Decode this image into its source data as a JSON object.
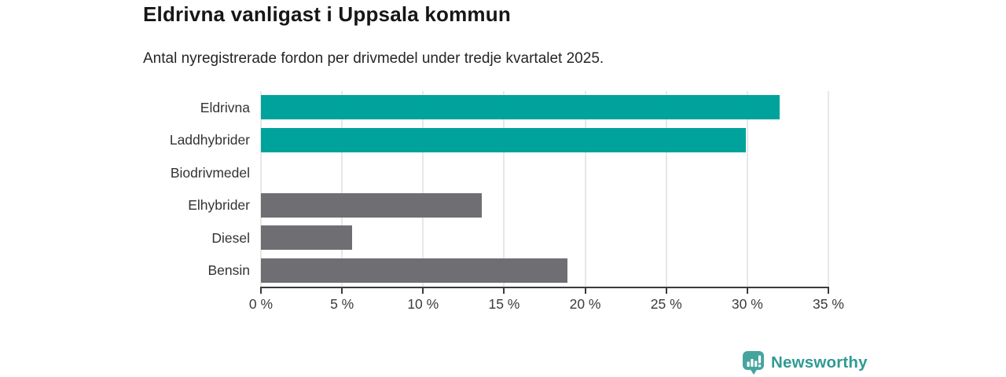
{
  "header": {
    "title": "Eldrivna vanligast i Uppsala kommun",
    "subtitle": "Antal nyregistrerade fordon per drivmedel under tredje kvartalet 2025."
  },
  "chart_data": {
    "type": "bar",
    "orientation": "horizontal",
    "title": "Eldrivna vanligast i Uppsala kommun",
    "subtitle": "Antal nyregistrerade fordon per drivmedel under tredje kvartalet 2025.",
    "categories": [
      "Eldrivna",
      "Laddhybrider",
      "Biodrivmedel",
      "Elhybrider",
      "Diesel",
      "Bensin"
    ],
    "values": [
      32.0,
      29.9,
      0,
      13.6,
      5.6,
      18.9
    ],
    "unit": "%",
    "xlim": [
      0,
      35
    ],
    "x_ticks": [
      0,
      5,
      10,
      15,
      20,
      25,
      30,
      35
    ],
    "x_tick_labels": [
      "0 %",
      "5 %",
      "10 %",
      "15 %",
      "20 %",
      "25 %",
      "30 %",
      "35 %"
    ],
    "bar_colors": [
      "#00a39b",
      "#00a39b",
      "#6e6e73",
      "#6e6e73",
      "#6e6e73",
      "#6e6e73"
    ],
    "highlight_color": "#00a39b",
    "default_color": "#6e6e73",
    "grid": true,
    "legend": false,
    "xlabel": "",
    "ylabel": ""
  },
  "footer": {
    "brand": "Newsworthy",
    "logo_icon": "newsworthy-bar-chart-bubble-icon",
    "brand_color": "#2f9b94",
    "icon_color": "#45a59e"
  }
}
